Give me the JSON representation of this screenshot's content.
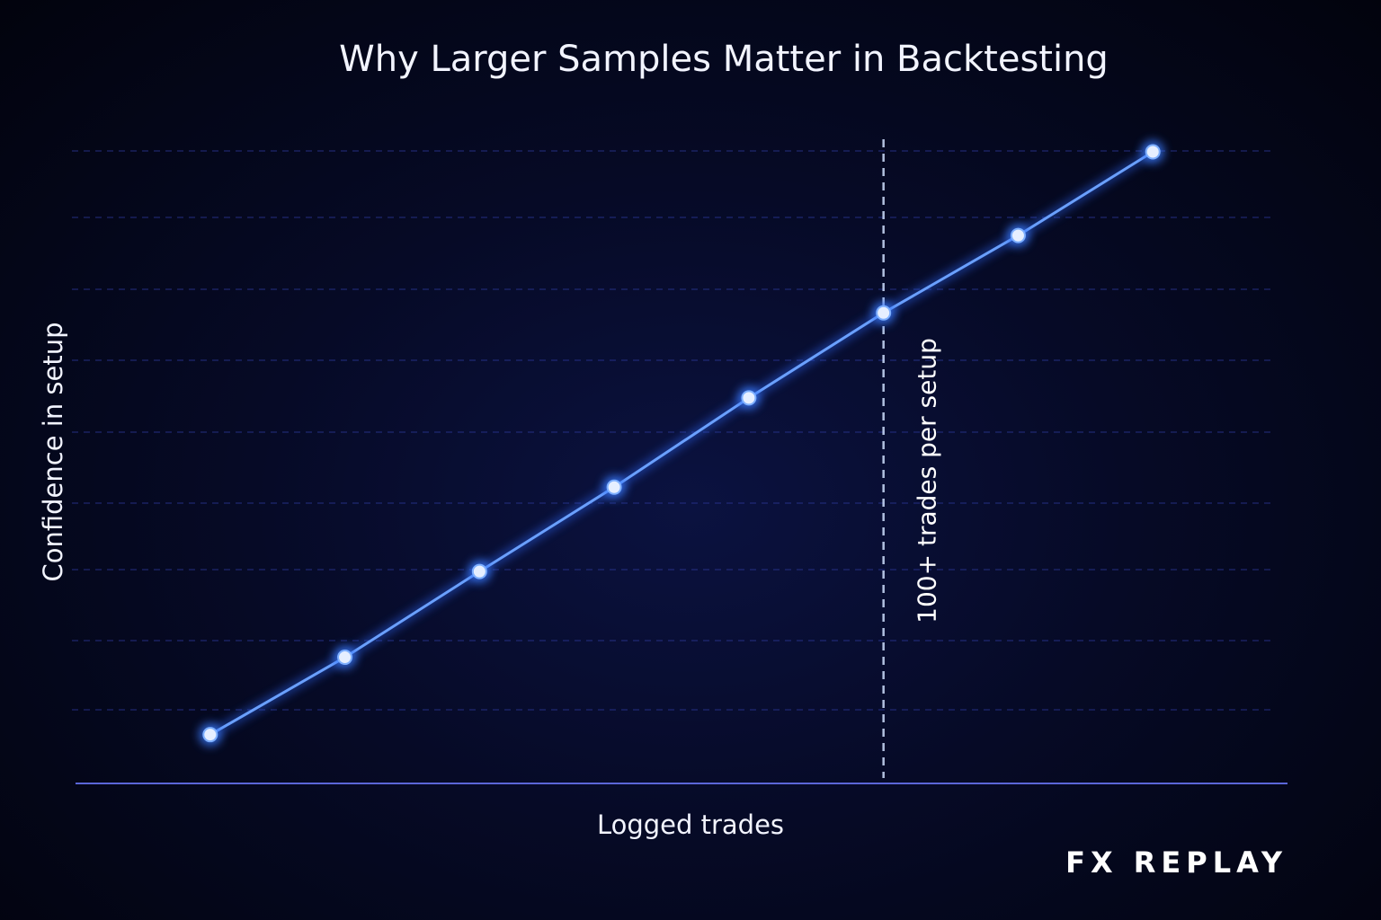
{
  "chart_data": {
    "type": "line",
    "title": "Why Larger Samples Matter in Backtesting",
    "xlabel": "Logged trades",
    "ylabel": "Confidence in setup",
    "grid": true,
    "x": [
      1,
      2,
      3,
      4,
      5,
      6,
      7,
      8
    ],
    "series": [
      {
        "values": [
          6.4,
          17.5,
          29.8,
          41.9,
          54.7,
          66.9,
          78.0,
          90.0
        ]
      }
    ],
    "xlim": [
      0,
      9
    ],
    "ylim": [
      -0.6,
      90.0
    ],
    "annotations": [
      {
        "x": 6,
        "text": "100+ trades per setup"
      }
    ],
    "colors": {
      "line": "#6aa0ff",
      "point": "#e6efff",
      "marker": "#cfe0ff"
    }
  },
  "brand": {
    "logo_text": "FX REPLAY"
  }
}
